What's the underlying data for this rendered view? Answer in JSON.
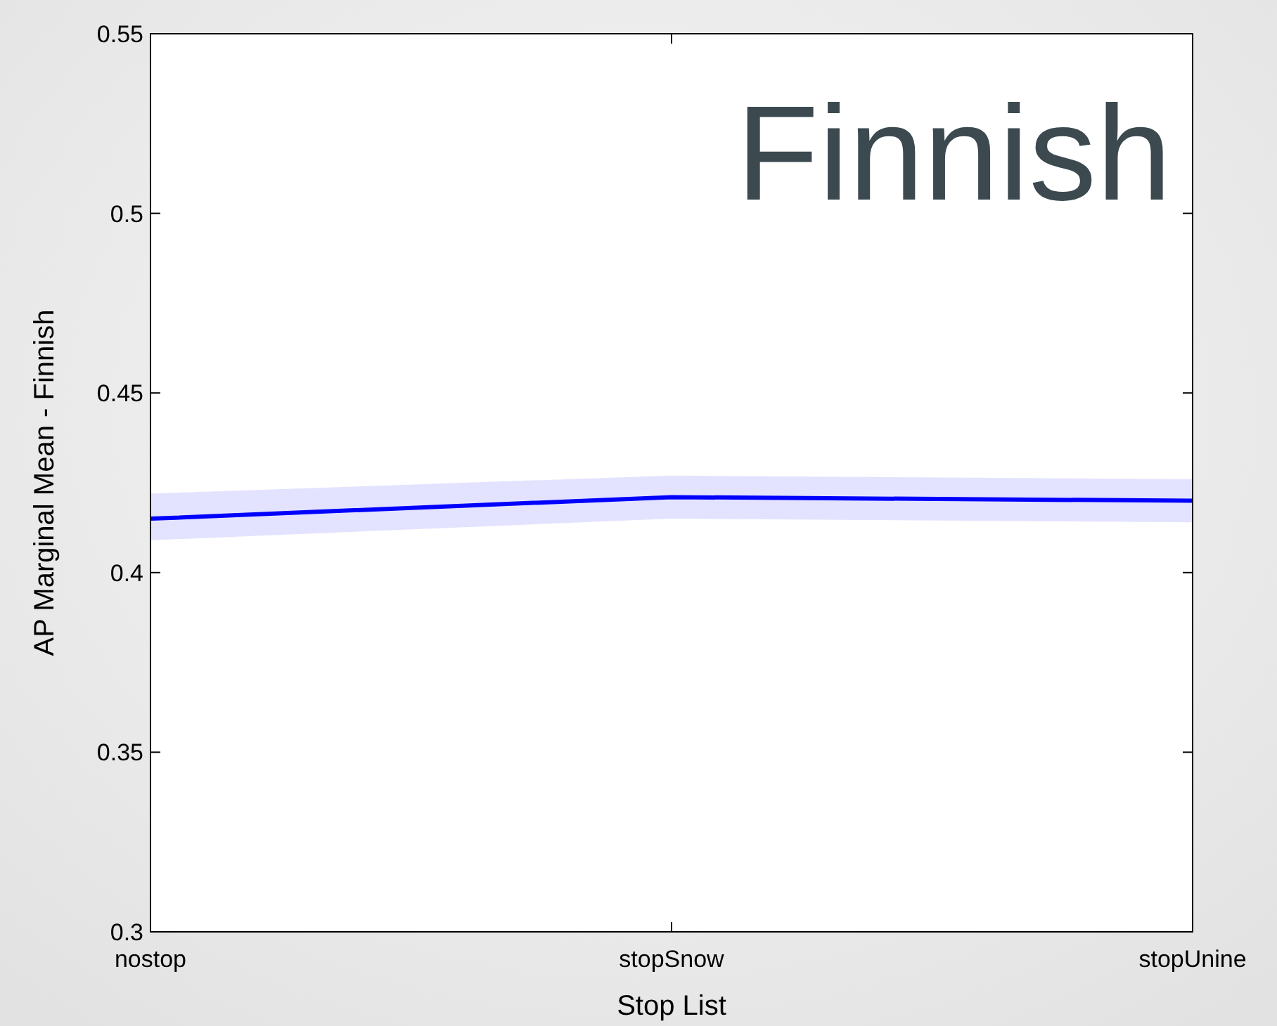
{
  "chart_data": {
    "type": "line",
    "title": "Finnish",
    "xlabel": "Stop List",
    "ylabel": "AP Marginal Mean - Finnish",
    "categories": [
      "nostop",
      "stopSnow",
      "stopUnine"
    ],
    "series": [
      {
        "color": "#0000ff",
        "values": [
          0.415,
          0.421,
          0.42
        ],
        "lower": [
          0.409,
          0.415,
          0.414
        ],
        "upper": [
          0.422,
          0.427,
          0.426
        ]
      }
    ],
    "ylim": [
      0.3,
      0.55
    ],
    "yticks": [
      0.3,
      0.35,
      0.4,
      0.45,
      0.5,
      0.55
    ],
    "grid": false,
    "marker": "none",
    "line_style": "solid"
  }
}
